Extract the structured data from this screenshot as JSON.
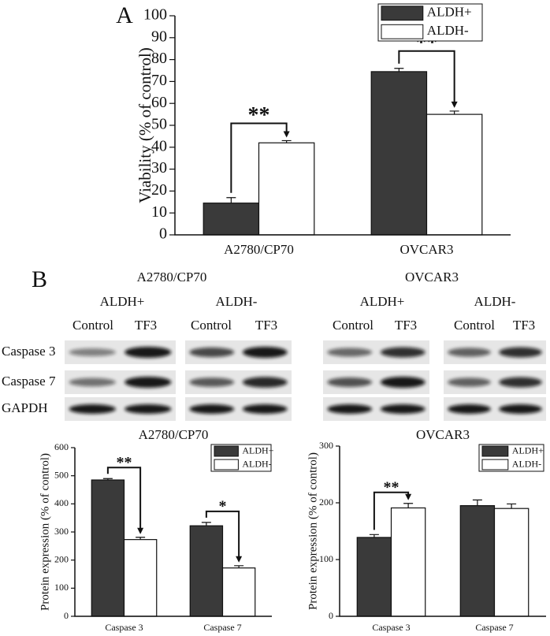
{
  "panel_labels": [
    "A",
    "B"
  ],
  "chart_data": [
    {
      "type": "bar",
      "ylabel": "Viability (% of control)",
      "categories": [
        "A2780/CP70",
        "OVCAR3"
      ],
      "series": [
        {
          "name": "ALDH+",
          "color": "#3a3a3a",
          "values": [
            14.5,
            74.5
          ],
          "errors": [
            2.5,
            1.5
          ]
        },
        {
          "name": "ALDH-",
          "color": "#ffffff",
          "values": [
            42,
            55
          ],
          "errors": [
            1,
            1.5
          ]
        }
      ],
      "significance": [
        "**",
        "**"
      ],
      "ylim": [
        0,
        100
      ],
      "yticks": [
        0,
        10,
        20,
        30,
        40,
        50,
        60,
        70,
        80,
        90,
        100
      ],
      "legend": "upper right"
    },
    {
      "type": "bar",
      "title": "A2780/CP70",
      "ylabel": "Protein expression (% of control)",
      "categories": [
        "Caspase 3",
        "Caspase 7"
      ],
      "series": [
        {
          "name": "ALDH+",
          "color": "#3a3a3a",
          "values": [
            485,
            322
          ],
          "errors": [
            5,
            12
          ]
        },
        {
          "name": "ALDH-",
          "color": "#ffffff",
          "values": [
            273,
            172
          ],
          "errors": [
            8,
            8
          ]
        }
      ],
      "significance": [
        "**",
        "*"
      ],
      "ylim": [
        0,
        600
      ],
      "yticks": [
        0,
        100,
        200,
        300,
        400,
        500,
        600
      ],
      "legend": "upper right"
    },
    {
      "type": "bar",
      "title": "OVCAR3",
      "ylabel": "Protein expression (% of control)",
      "categories": [
        "Caspase 3",
        "Caspase 7"
      ],
      "series": [
        {
          "name": "ALDH+",
          "color": "#3a3a3a",
          "values": [
            139,
            195
          ],
          "errors": [
            5,
            10
          ]
        },
        {
          "name": "ALDH-",
          "color": "#ffffff",
          "values": [
            191,
            190
          ],
          "errors": [
            8,
            8
          ]
        }
      ],
      "significance": [
        "**",
        null
      ],
      "ylim": [
        0,
        300
      ],
      "yticks": [
        0,
        100,
        200,
        300
      ],
      "legend": "upper right"
    }
  ],
  "blot": {
    "cell_lines": [
      "A2780/CP70",
      "OVCAR3"
    ],
    "subsets": [
      "ALDH+",
      "ALDH-",
      "ALDH+",
      "ALDH-"
    ],
    "lanes": [
      "Control",
      "TF3",
      "Control",
      "TF3",
      "Control",
      "TF3",
      "Control",
      "TF3"
    ],
    "rows": [
      "Caspase 3",
      "Caspase 7",
      "GAPDH"
    ]
  }
}
